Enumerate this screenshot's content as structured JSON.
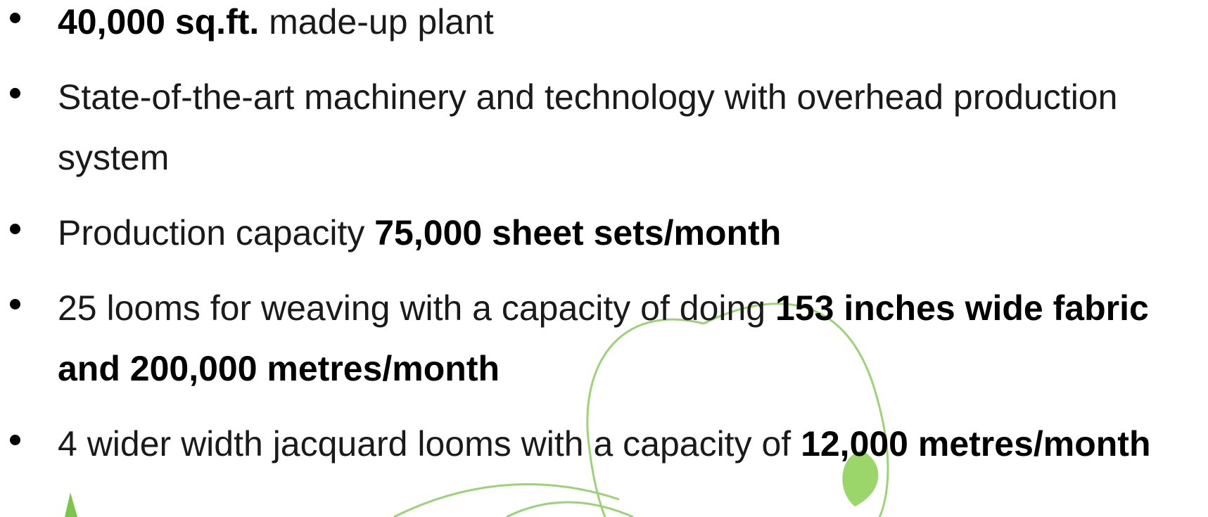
{
  "bullets": [
    {
      "runs": [
        {
          "text": "40,000 sq.ft.",
          "bold": true
        },
        {
          "text": " made-up plant"
        }
      ]
    },
    {
      "runs": [
        {
          "text": "State-of-the-art machinery and technology with overhead production system"
        }
      ]
    },
    {
      "runs": [
        {
          "text": "Production capacity "
        },
        {
          "text": "75,000 sheet sets/month",
          "bold": true
        }
      ]
    },
    {
      "runs": [
        {
          "text": "25 looms for weaving with a capacity of doing "
        },
        {
          "text": "153 inches wide fabric and 200,000 metres/month",
          "bold": true
        }
      ]
    },
    {
      "runs": [
        {
          "text": "4 wider width jacquard looms with a capacity of "
        },
        {
          "text": "12,000 metres/month",
          "bold": true
        }
      ]
    }
  ]
}
